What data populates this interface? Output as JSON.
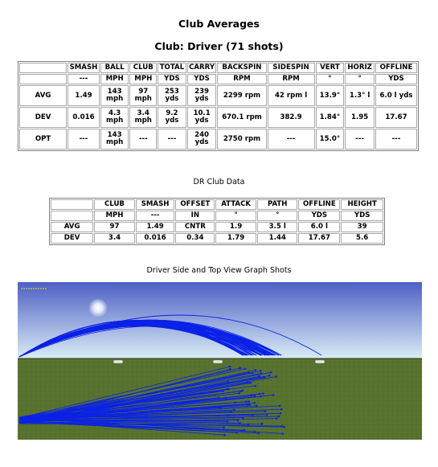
{
  "title": "Club Averages",
  "subtitle": "Club: Driver (71 shots)",
  "averages_table": {
    "headers": [
      "",
      "SMASH",
      "BALL",
      "CLUB",
      "TOTAL",
      "CARRY",
      "BACKSPIN",
      "SIDESPIN",
      "VERT",
      "HORIZ",
      "OFFLINE"
    ],
    "units": [
      "",
      "---",
      "MPH",
      "MPH",
      "YDS",
      "YDS",
      "RPM",
      "RPM",
      "°",
      "°",
      "YDS"
    ],
    "rows": [
      [
        "AVG",
        "1.49",
        "143 mph",
        "97 mph",
        "253 yds",
        "239 yds",
        "2299 rpm",
        "42 rpm l",
        "13.9°",
        "1.3° l",
        "6.0 l yds"
      ],
      [
        "DEV",
        "0.016",
        "4.3 mph",
        "3.4 mph",
        "9.2 yds",
        "10.1 yds",
        "670.1 rpm",
        "382.9",
        "1.84°",
        "1.95",
        "17.67"
      ],
      [
        "OPT",
        "---",
        "143 mph",
        "---",
        "---",
        "240 yds",
        "2750 rpm",
        "---",
        "15.0°",
        "---",
        "---"
      ]
    ]
  },
  "club_data_title": "DR Club Data",
  "club_table": {
    "headers": [
      "",
      "CLUB",
      "SMASH",
      "OFFSET",
      "ATTACK",
      "PATH",
      "OFFLINE",
      "HEIGHT"
    ],
    "units": [
      "",
      "MPH",
      "---",
      "IN",
      "°",
      "°",
      "YDS",
      "YDS"
    ],
    "rows": [
      [
        "AVG",
        "97",
        "1.49",
        "CNTR",
        "1.9",
        "3.5 l",
        "6.0 l",
        "39"
      ],
      [
        "DEV",
        "3.4",
        "0.016",
        "0.34",
        "1.79",
        "1.44",
        "17.67",
        "5.6"
      ]
    ]
  },
  "graph_title": "Driver Side and Top View Graph Shots",
  "graph": {
    "sky_top": "#4d5fc4",
    "sky_bottom": "#d9ecf5",
    "grass_color": "#56722e",
    "shot_color": "#0b22e6",
    "range_marker_icons": [
      "range-marker-icon",
      "range-marker-icon",
      "range-marker-icon"
    ]
  }
}
